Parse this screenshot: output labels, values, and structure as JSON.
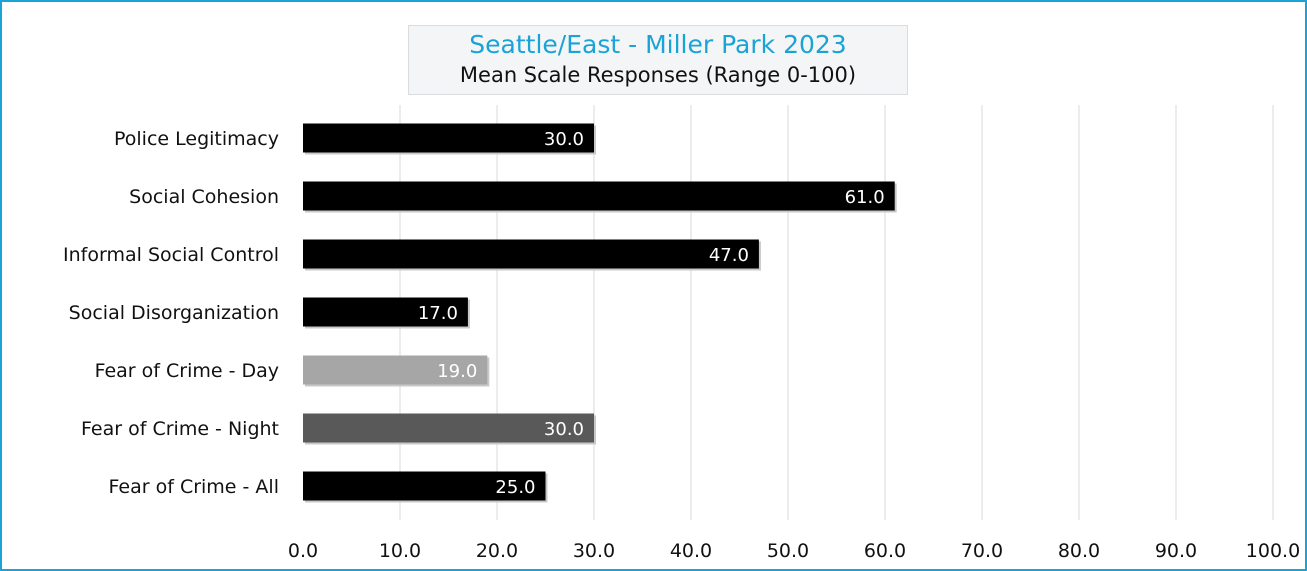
{
  "chart_data": {
    "type": "bar",
    "orientation": "horizontal",
    "title": "Seattle/East - Miller Park 2023",
    "subtitle": "Mean Scale Responses (Range 0-100)",
    "categories": [
      "Police Legitimacy",
      "Social Cohesion",
      "Informal Social Control",
      "Social Disorganization",
      "Fear of Crime - Day",
      "Fear of Crime - Night",
      "Fear of Crime - All"
    ],
    "values": [
      30.0,
      61.0,
      47.0,
      17.0,
      19.0,
      30.0,
      25.0
    ],
    "data_labels": [
      "30.0",
      "61.0",
      "47.0",
      "17.0",
      "19.0",
      "30.0",
      "25.0"
    ],
    "bar_colors": [
      "#000000",
      "#000000",
      "#000000",
      "#000000",
      "#a6a6a6",
      "#595959",
      "#000000"
    ],
    "xlim": [
      0,
      100
    ],
    "x_ticks": [
      "0.0",
      "10.0",
      "20.0",
      "30.0",
      "40.0",
      "50.0",
      "60.0",
      "70.0",
      "80.0",
      "90.0",
      "100.0"
    ],
    "grid": "vertical",
    "legend": "none"
  },
  "colors": {
    "accent": "#1aa3d6",
    "gridline": "#d9d9d9"
  }
}
